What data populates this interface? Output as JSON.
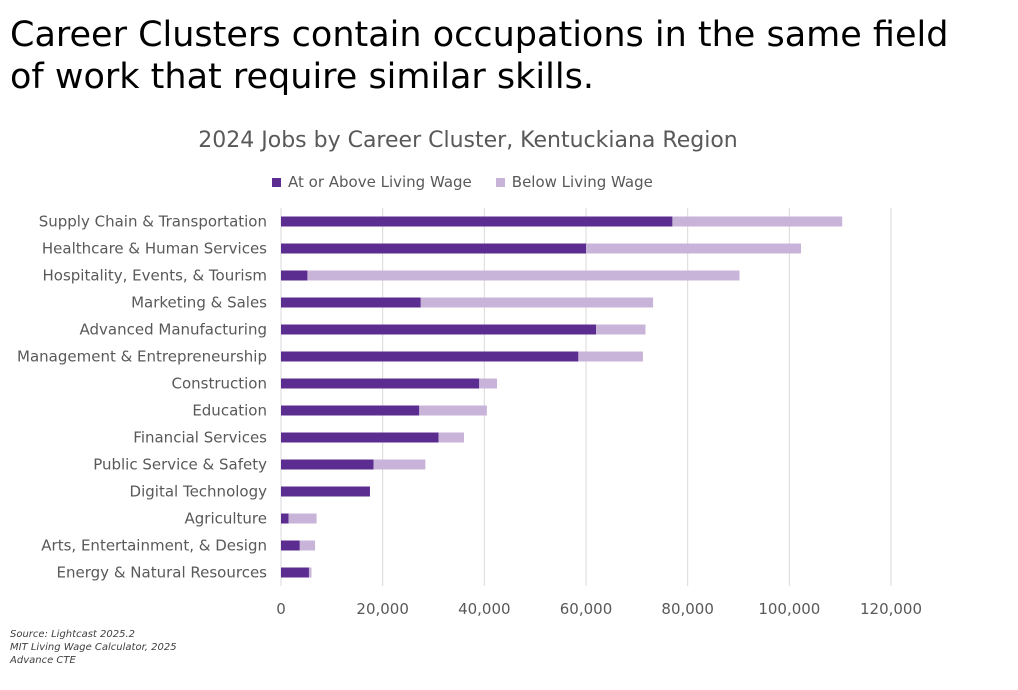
{
  "slide": {
    "title_line1": "Career Clusters contain occupations in the same field",
    "title_line2": "of work that require similar skills."
  },
  "chart_data": {
    "type": "bar",
    "orientation": "horizontal",
    "stacked": true,
    "title": "2024 Jobs by Career Cluster, Kentuckiana Region",
    "categories": [
      "Supply Chain & Transportation",
      "Healthcare & Human Services",
      "Hospitality, Events, & Tourism",
      "Marketing & Sales",
      "Advanced Manufacturing",
      "Management & Entrepreneurship",
      "Construction",
      "Education",
      "Financial Services",
      "Public Service & Safety",
      "Digital Technology",
      "Agriculture",
      "Arts, Entertainment, & Design",
      "Energy & Natural Resources"
    ],
    "series": [
      {
        "name": "At or Above Living Wage",
        "color": "#5c2d91",
        "values": [
          77000,
          60000,
          5200,
          27500,
          62000,
          58500,
          39000,
          27200,
          31000,
          18200,
          17500,
          1500,
          3700,
          5500
        ]
      },
      {
        "name": "Below Living Wage",
        "color": "#c9b4d9",
        "values": [
          33400,
          42300,
          85000,
          45700,
          9700,
          12700,
          3500,
          13300,
          5000,
          10200,
          0,
          5500,
          3000,
          500
        ]
      }
    ],
    "xlim": [
      0,
      120000
    ],
    "xticks": [
      "0",
      "20,000",
      "40,000",
      "60,000",
      "80,000",
      "100,000",
      "120,000"
    ],
    "xtick_values": [
      0,
      20000,
      40000,
      60000,
      80000,
      100000,
      120000
    ],
    "grid": true,
    "legend": "top-center"
  },
  "source": {
    "line1": "Source: Lightcast 2025.2",
    "line2": "MIT Living Wage Calculator, 2025",
    "line3": "Advance CTE"
  }
}
